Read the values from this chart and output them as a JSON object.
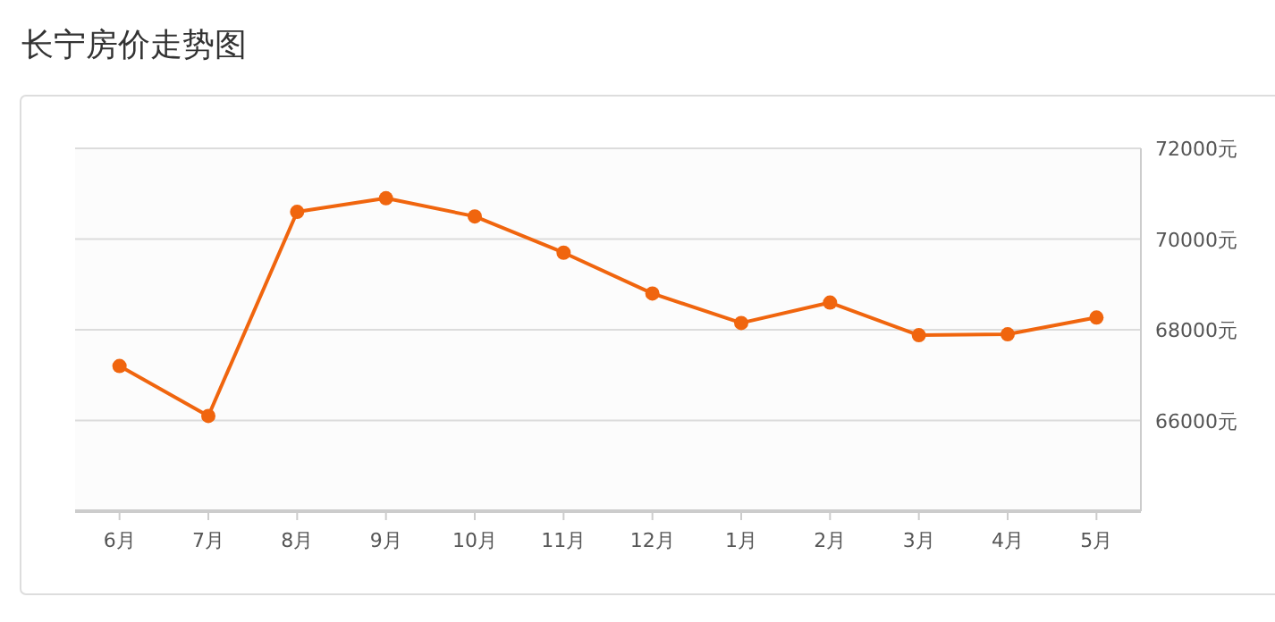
{
  "chart_data": {
    "type": "line",
    "title": "长宁房价走势图",
    "categories": [
      "6月",
      "7月",
      "8月",
      "9月",
      "10月",
      "11月",
      "12月",
      "1月",
      "2月",
      "3月",
      "4月",
      "5月"
    ],
    "series": [
      {
        "color": "#f0650e",
        "values": [
          67200,
          66100,
          70600,
          70900,
          70500,
          69700,
          68800,
          68150,
          68600,
          67880,
          67900,
          68270
        ]
      }
    ],
    "ylim": [
      64000,
      72000
    ],
    "yticks": [
      {
        "value": 66000,
        "label": "66000元"
      },
      {
        "value": 68000,
        "label": "68000元"
      },
      {
        "value": 70000,
        "label": "70000元"
      },
      {
        "value": 72000,
        "label": "72000元"
      }
    ],
    "grid": "y",
    "marker": "circle",
    "line_style": "solid"
  }
}
